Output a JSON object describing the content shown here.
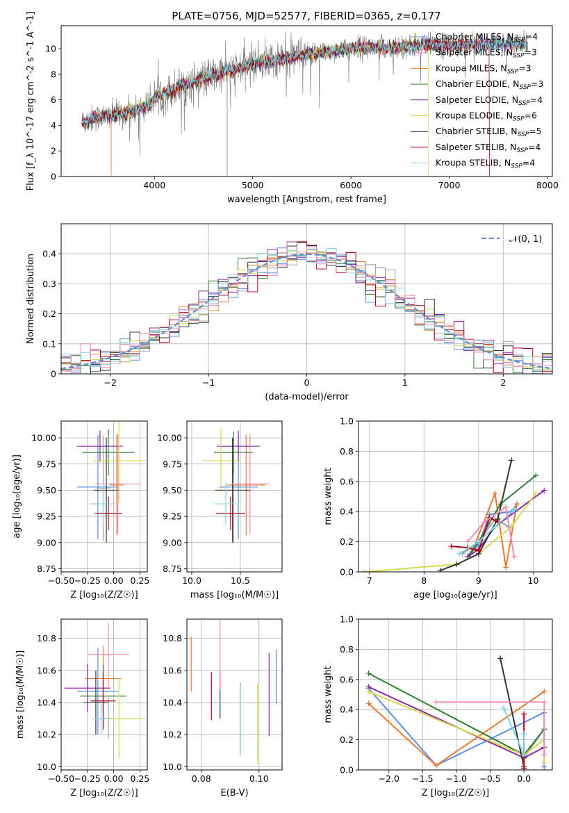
{
  "figure": {
    "title": "PLATE=0756, MJD=52577, FIBERID=0365, z=0.177"
  },
  "colors": {
    "data_gray": "#808080",
    "grid": "#b0b0b0",
    "normal_curve": "#5a8fd6",
    "models": [
      "#5b8ee6",
      "#e87a2a",
      "#9f9f9f",
      "#2e7d32",
      "#8e24aa",
      "#d6d94a",
      "#333333",
      "#b3001b",
      "#7fd6e0",
      "#f08ab8"
    ]
  },
  "chart_data": [
    {
      "id": "spectrum",
      "type": "line",
      "xlabel": "wavelength [Angstrom, rest frame]",
      "ylabel": "Flux [f_λ 10^-17 erg cm^-2 s^-1 A^-1]",
      "xlim": [
        3050,
        8050
      ],
      "ylim": [
        0,
        11.8
      ],
      "xticks": [
        4000,
        5000,
        6000,
        7000,
        8000
      ],
      "yticks": [
        0,
        2,
        4,
        6,
        8,
        10
      ],
      "legend_loc": "upper right",
      "legend": [
        {
          "label": "Chabrier MILES, N",
          "sub": "SSP",
          "suffix": "=4",
          "color_index": 0
        },
        {
          "label": "Salpeter MILES, N",
          "sub": "SSP",
          "suffix": "=3",
          "color_index": 9
        },
        {
          "label": "Kroupa MILES, N",
          "sub": "SSP",
          "suffix": "=3",
          "color_index": 1
        },
        {
          "label": "Chabrier ELODIE, N",
          "sub": "SSP",
          "suffix": "=3",
          "color_index": 3
        },
        {
          "label": "Salpeter ELODIE, N",
          "sub": "SSP",
          "suffix": "=4",
          "color_index": 4
        },
        {
          "label": "Kroupa ELODIE, N",
          "sub": "SSP",
          "suffix": "=6",
          "color_index": 5
        },
        {
          "label": "Chabrier STELIB, N",
          "sub": "SSP",
          "suffix": "=5",
          "color_index": 6
        },
        {
          "label": "Salpeter STELIB, N",
          "sub": "SSP",
          "suffix": "=4",
          "color_index": 7
        },
        {
          "label": "Kroupa STELIB, N",
          "sub": "SSP",
          "suffix": "=4",
          "color_index": 8
        }
      ],
      "continuum": [
        [
          3260,
          4.2
        ],
        [
          3400,
          4.6
        ],
        [
          3600,
          4.8
        ],
        [
          3800,
          5.2
        ],
        [
          3950,
          5.6
        ],
        [
          4000,
          6.2
        ],
        [
          4200,
          6.8
        ],
        [
          4400,
          7.4
        ],
        [
          4600,
          7.9
        ],
        [
          4800,
          8.3
        ],
        [
          5000,
          8.8
        ],
        [
          5200,
          9.1
        ],
        [
          5400,
          9.3
        ],
        [
          5600,
          9.6
        ],
        [
          5800,
          9.8
        ],
        [
          6000,
          10.0
        ],
        [
          6200,
          10.1
        ],
        [
          6400,
          10.1
        ],
        [
          6600,
          10.2
        ],
        [
          6800,
          10.3
        ],
        [
          7000,
          10.3
        ],
        [
          7200,
          10.3
        ],
        [
          7400,
          10.4
        ],
        [
          7600,
          10.4
        ],
        [
          7800,
          10.4
        ]
      ],
      "cutoffs": [
        [
          3560,
          1
        ],
        [
          3920,
          5
        ],
        [
          4710,
          2
        ],
        [
          6790,
          5
        ],
        [
          7410,
          7
        ]
      ]
    },
    {
      "id": "residuals",
      "type": "histogram",
      "xlabel": "(data-model)/error",
      "ylabel": "Normed distribution",
      "xlim": [
        -2.5,
        2.5
      ],
      "ylim": [
        0,
        0.5
      ],
      "xticks": [
        -2,
        -1,
        0,
        1,
        2
      ],
      "yticks": [
        0,
        0.1,
        0.2,
        0.3,
        0.4
      ],
      "legend": [
        {
          "label": "𝒩(0, 1)",
          "style": "dashed"
        }
      ],
      "bin_width": 0.1
    },
    {
      "id": "age_vs_Z",
      "type": "errorbar",
      "xlabel": "Z [log₁₀(Z/Z☉)]",
      "ylabel": "age  [log₁₀(age/yr)]",
      "xlim": [
        -0.5,
        0.32
      ],
      "ylim": [
        8.72,
        10.16
      ],
      "xticks": [
        -0.5,
        -0.25,
        0.0,
        0.25
      ],
      "yticks": [
        8.75,
        9.0,
        9.25,
        9.5,
        9.75,
        10.0
      ],
      "points": [
        {
          "x": -0.15,
          "y": 9.53,
          "xerr": 0.2,
          "yerr": 0.5,
          "color_index": 0
        },
        {
          "x": 0.03,
          "y": 9.55,
          "xerr": 0.07,
          "yerr": 0.48,
          "color_index": 1
        },
        {
          "x": -0.1,
          "y": 9.52,
          "xerr": 0.07,
          "yerr": 0.5,
          "color_index": 2
        },
        {
          "x": -0.05,
          "y": 9.86,
          "xerr": 0.25,
          "yerr": 0.22,
          "color_index": 3
        },
        {
          "x": -0.13,
          "y": 9.92,
          "xerr": 0.22,
          "yerr": 0.15,
          "color_index": 4
        },
        {
          "x": 0.05,
          "y": 9.78,
          "xerr": 0.25,
          "yerr": 0.4,
          "color_index": 5
        },
        {
          "x": -0.07,
          "y": 9.5,
          "xerr": 0.12,
          "yerr": 0.5,
          "color_index": 6
        },
        {
          "x": -0.05,
          "y": 9.28,
          "xerr": 0.13,
          "yerr": 0.16,
          "color_index": 7
        },
        {
          "x": -0.1,
          "y": 9.37,
          "xerr": 0.12,
          "yerr": 0.2,
          "color_index": 8
        },
        {
          "x": 0.04,
          "y": 9.56,
          "xerr": 0.22,
          "yerr": 0.48,
          "color_index": 9
        }
      ]
    },
    {
      "id": "age_vs_mass",
      "type": "errorbar",
      "xlabel": "mass [log₁₀(M/M☉)]",
      "ylabel": "",
      "xlim": [
        9.95,
        10.93
      ],
      "ylim": [
        8.72,
        10.16
      ],
      "xticks": [
        10.0,
        10.5
      ],
      "yticks": [
        8.75,
        9.0,
        9.25,
        9.5,
        9.75,
        10.0
      ],
      "points": [
        {
          "x": 10.48,
          "y": 9.53,
          "xerr": 0.2,
          "yerr": 0.5,
          "color_index": 0
        },
        {
          "x": 10.56,
          "y": 9.55,
          "xerr": 0.2,
          "yerr": 0.48,
          "color_index": 1
        },
        {
          "x": 10.43,
          "y": 9.5,
          "xerr": 0.2,
          "yerr": 0.5,
          "color_index": 2
        },
        {
          "x": 10.43,
          "y": 9.86,
          "xerr": 0.2,
          "yerr": 0.2,
          "color_index": 3
        },
        {
          "x": 10.48,
          "y": 9.92,
          "xerr": 0.22,
          "yerr": 0.15,
          "color_index": 4
        },
        {
          "x": 10.3,
          "y": 9.78,
          "xerr": 0.2,
          "yerr": 0.3,
          "color_index": 5
        },
        {
          "x": 10.42,
          "y": 9.5,
          "xerr": 0.18,
          "yerr": 0.5,
          "color_index": 6
        },
        {
          "x": 10.4,
          "y": 9.28,
          "xerr": 0.15,
          "yerr": 0.16,
          "color_index": 7
        },
        {
          "x": 10.35,
          "y": 9.37,
          "xerr": 0.12,
          "yerr": 0.2,
          "color_index": 8
        },
        {
          "x": 10.6,
          "y": 9.56,
          "xerr": 0.2,
          "yerr": 0.48,
          "color_index": 9
        }
      ]
    },
    {
      "id": "weight_vs_age",
      "type": "line",
      "xlabel": "age  [log₁₀(age/yr)]",
      "ylabel": "mass weight",
      "xlim": [
        6.8,
        10.35
      ],
      "ylim": [
        0,
        1.0
      ],
      "xticks": [
        7,
        8,
        9,
        10
      ],
      "yticks": [
        0.0,
        0.2,
        0.4,
        0.6,
        0.8,
        1.0
      ],
      "series": [
        {
          "points": [
            [
              8.85,
              0.12
            ],
            [
              9.0,
              0.18
            ],
            [
              9.2,
              0.38
            ],
            [
              9.6,
              0.4
            ],
            [
              9.7,
              0.45
            ]
          ],
          "color_index": 0
        },
        {
          "points": [
            [
              8.9,
              0.15
            ],
            [
              9.3,
              0.52
            ],
            [
              9.5,
              0.03
            ],
            [
              9.7,
              0.45
            ]
          ],
          "color_index": 1
        },
        {
          "points": [
            [
              8.7,
              0.12
            ],
            [
              9.0,
              0.2
            ],
            [
              9.3,
              0.35
            ],
            [
              9.55,
              0.3
            ]
          ],
          "color_index": 2
        },
        {
          "points": [
            [
              8.8,
              0.1
            ],
            [
              9.0,
              0.2
            ],
            [
              9.4,
              0.45
            ],
            [
              10.05,
              0.64
            ]
          ],
          "color_index": 3
        },
        {
          "points": [
            [
              8.8,
              0.1
            ],
            [
              9.0,
              0.15
            ],
            [
              9.3,
              0.3
            ],
            [
              10.2,
              0.54
            ]
          ],
          "color_index": 4
        },
        {
          "points": [
            [
              6.9,
              0.0
            ],
            [
              8.6,
              0.05
            ],
            [
              9.0,
              0.12
            ],
            [
              9.6,
              0.3
            ],
            [
              10.05,
              0.52
            ]
          ],
          "color_index": 5
        },
        {
          "points": [
            [
              8.3,
              0.01
            ],
            [
              8.6,
              0.05
            ],
            [
              9.0,
              0.12
            ],
            [
              9.35,
              0.35
            ],
            [
              9.6,
              0.74
            ]
          ],
          "color_index": 6
        },
        {
          "points": [
            [
              8.5,
              0.17
            ],
            [
              8.8,
              0.16
            ],
            [
              9.0,
              0.14
            ],
            [
              9.2,
              0.36
            ],
            [
              9.35,
              0.33
            ]
          ],
          "color_index": 7
        },
        {
          "points": [
            [
              8.65,
              0.12
            ],
            [
              9.0,
              0.2
            ],
            [
              9.3,
              0.3
            ],
            [
              9.65,
              0.41
            ]
          ],
          "color_index": 8
        },
        {
          "points": [
            [
              8.8,
              0.2
            ],
            [
              9.1,
              0.33
            ],
            [
              9.5,
              0.43
            ],
            [
              9.65,
              0.1
            ]
          ],
          "color_index": 9
        }
      ]
    },
    {
      "id": "mass_vs_Z",
      "type": "errorbar",
      "xlabel": "Z [log₁₀(Z/Z☉)]",
      "ylabel": "mass [log₁₀(M/M☉)]",
      "xlim": [
        -0.5,
        0.32
      ],
      "ylim": [
        9.98,
        10.92
      ],
      "xticks": [
        -0.5,
        -0.25,
        0.0,
        0.25
      ],
      "yticks": [
        10.0,
        10.2,
        10.4,
        10.6,
        10.8
      ],
      "points": [
        {
          "x": -0.15,
          "y": 10.47,
          "xerr": 0.2,
          "yerr": 0.27,
          "color_index": 0
        },
        {
          "x": -0.1,
          "y": 10.55,
          "xerr": 0.17,
          "yerr": 0.2,
          "color_index": 1
        },
        {
          "x": -0.05,
          "y": 10.3,
          "xerr": 0.05,
          "yerr": 0.13,
          "color_index": 2
        },
        {
          "x": -0.1,
          "y": 10.44,
          "xerr": 0.22,
          "yerr": 0.2,
          "color_index": 3
        },
        {
          "x": -0.25,
          "y": 10.49,
          "xerr": 0.22,
          "yerr": 0.15,
          "color_index": 4
        },
        {
          "x": 0.05,
          "y": 10.3,
          "xerr": 0.25,
          "yerr": 0.25,
          "color_index": 5
        },
        {
          "x": -0.17,
          "y": 10.4,
          "xerr": 0.12,
          "yerr": 0.2,
          "color_index": 6
        },
        {
          "x": -0.1,
          "y": 10.41,
          "xerr": 0.12,
          "yerr": 0.18,
          "color_index": 7
        },
        {
          "x": -0.12,
          "y": 10.3,
          "xerr": 0.08,
          "yerr": 0.1,
          "color_index": 8
        },
        {
          "x": -0.05,
          "y": 10.7,
          "xerr": 0.2,
          "yerr": 0.2,
          "color_index": 9
        }
      ]
    },
    {
      "id": "mass_vs_ebv",
      "type": "errorbar",
      "xlabel": "E(B-V)",
      "ylabel": "",
      "xlim": [
        0.075,
        0.108
      ],
      "ylim": [
        9.98,
        10.92
      ],
      "xticks": [
        0.08,
        0.1
      ],
      "yticks": [
        10.0,
        10.2,
        10.4,
        10.6,
        10.8
      ],
      "points": [
        {
          "x": 0.106,
          "y": 10.56,
          "xerr": 0,
          "yerr": 0.17,
          "color_index": 0
        },
        {
          "x": 0.0765,
          "y": 10.64,
          "xerr": 0,
          "yerr": 0.17,
          "color_index": 1
        },
        {
          "x": 0.0865,
          "y": 10.45,
          "xerr": 0,
          "yerr": 0.15,
          "color_index": 6
        },
        {
          "x": 0.0935,
          "y": 10.3,
          "xerr": 0,
          "yerr": 0.22,
          "color_index": 3
        },
        {
          "x": 0.1035,
          "y": 10.45,
          "xerr": 0,
          "yerr": 0.26,
          "color_index": 4
        },
        {
          "x": 0.0995,
          "y": 10.27,
          "xerr": 0,
          "yerr": 0.25,
          "color_index": 5
        },
        {
          "x": 0.0835,
          "y": 10.44,
          "xerr": 0,
          "yerr": 0.15,
          "color_index": 7
        },
        {
          "x": 0.0935,
          "y": 10.29,
          "xerr": 0,
          "yerr": 0.22,
          "color_index": 8
        },
        {
          "x": 0.0865,
          "y": 10.7,
          "xerr": 0,
          "yerr": 0.22,
          "color_index": 9
        }
      ]
    },
    {
      "id": "weight_vs_Z",
      "type": "line",
      "xlabel": "Z [log₁₀(Z/Z☉)]",
      "ylabel": "mass weight",
      "xlim": [
        -2.45,
        0.42
      ],
      "ylim": [
        0,
        1.0
      ],
      "xticks": [
        -2.0,
        -1.5,
        -1.0,
        -0.5,
        0.0
      ],
      "yticks": [
        0.0,
        0.2,
        0.4,
        0.6,
        0.8,
        1.0
      ],
      "series": [
        {
          "points": [
            [
              -2.3,
              0.54
            ],
            [
              -1.3,
              0.03
            ],
            [
              0.3,
              0.38
            ],
            [
              0.3,
              0.02
            ]
          ],
          "color_index": 0
        },
        {
          "points": [
            [
              -2.3,
              0.44
            ],
            [
              -1.3,
              0.03
            ],
            [
              0.3,
              0.52
            ]
          ],
          "color_index": 1
        },
        {
          "points": [
            [
              0.0,
              0.08
            ],
            [
              0.3,
              0.27
            ]
          ],
          "color_index": 2
        },
        {
          "points": [
            [
              -2.3,
              0.64
            ],
            [
              0.0,
              0.1
            ],
            [
              0.3,
              0.27
            ]
          ],
          "color_index": 3
        },
        {
          "points": [
            [
              -2.3,
              0.55
            ],
            [
              0.0,
              0.08
            ],
            [
              0.3,
              0.15
            ]
          ],
          "color_index": 4
        },
        {
          "points": [
            [
              -2.3,
              0.52
            ],
            [
              0.0,
              0.1
            ],
            [
              0.3,
              0.2
            ],
            [
              0.3,
              0.05
            ]
          ],
          "color_index": 5
        },
        {
          "points": [
            [
              -0.35,
              0.74
            ],
            [
              0.0,
              0.02
            ],
            [
              0.0,
              0.08
            ]
          ],
          "color_index": 6
        },
        {
          "points": [
            [
              0.0,
              0.37
            ],
            [
              0.0,
              0.01
            ]
          ],
          "color_index": 7
        },
        {
          "points": [
            [
              -0.3,
              0.41
            ],
            [
              0.0,
              0.1
            ],
            [
              0.0,
              0.24
            ]
          ],
          "color_index": 8
        },
        {
          "points": [
            [
              -1.3,
              0.45
            ],
            [
              0.3,
              0.45
            ],
            [
              0.3,
              0.1
            ]
          ],
          "color_index": 9
        }
      ]
    }
  ]
}
